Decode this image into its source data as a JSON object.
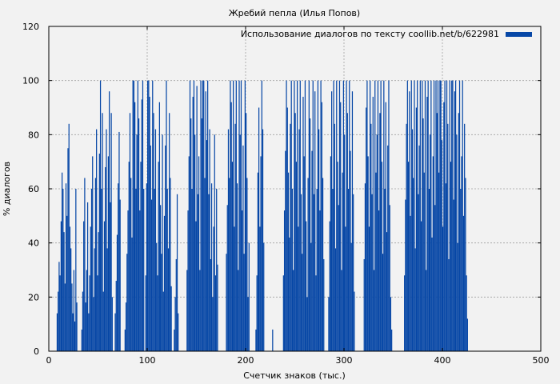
{
  "chart_data": {
    "type": "bar",
    "title": "Жребий пепла (Илья Попов)",
    "xlabel": "Счетчик знаков (тыс.)",
    "ylabel": "% диалогов",
    "xlim": [
      0,
      500
    ],
    "ylim": [
      0,
      120
    ],
    "x_ticks": [
      0,
      100,
      200,
      300,
      400,
      500
    ],
    "y_ticks": [
      0,
      20,
      40,
      60,
      80,
      100,
      120
    ],
    "grid": true,
    "legend_position": "top-right",
    "bar_width": 1,
    "colors": {
      "bars": "#0747a6",
      "background": "#f2f2f2",
      "plot_background": "#f2f2f2",
      "grid": "#a0a0a0",
      "axis": "#000000"
    },
    "series": [
      {
        "name": "Использование диалогов по тексту coollib.net/b/622981",
        "x_start": 0,
        "x_step": 1,
        "values": [
          0,
          0,
          0,
          0,
          0,
          0,
          0,
          0,
          14,
          22,
          33,
          28,
          48,
          66,
          60,
          44,
          25,
          62,
          50,
          75,
          84,
          46,
          38,
          25,
          14,
          30,
          11,
          60,
          18,
          0,
          0,
          0,
          0,
          8,
          22,
          48,
          64,
          18,
          30,
          55,
          14,
          28,
          46,
          60,
          72,
          20,
          38,
          64,
          82,
          28,
          44,
          73,
          100,
          60,
          88,
          22,
          48,
          68,
          82,
          38,
          72,
          96,
          55,
          88,
          20,
          0,
          0,
          14,
          26,
          43,
          62,
          81,
          56,
          0,
          0,
          0,
          0,
          8,
          18,
          36,
          52,
          70,
          88,
          64,
          42,
          100,
          100,
          92,
          60,
          80,
          100,
          86,
          52,
          70,
          93,
          100,
          60,
          0,
          28,
          62,
          100,
          100,
          94,
          76,
          56,
          100,
          88,
          60,
          82,
          40,
          28,
          70,
          92,
          54,
          36,
          80,
          22,
          50,
          76,
          100,
          60,
          38,
          88,
          64,
          24,
          0,
          0,
          8,
          20,
          34,
          58,
          14,
          0,
          0,
          0,
          0,
          0,
          0,
          0,
          0,
          30,
          52,
          72,
          100,
          86,
          60,
          94,
          100,
          80,
          48,
          98,
          58,
          72,
          30,
          100,
          86,
          100,
          100,
          64,
          96,
          78,
          100,
          58,
          82,
          34,
          62,
          20,
          46,
          80,
          28,
          60,
          32,
          0,
          0,
          0,
          0,
          0,
          0,
          0,
          0,
          36,
          54,
          82,
          64,
          100,
          92,
          70,
          100,
          46,
          84,
          100,
          62,
          30,
          100,
          80,
          100,
          52,
          76,
          36,
          100,
          88,
          64,
          20,
          40,
          0,
          0,
          0,
          0,
          0,
          0,
          8,
          28,
          66,
          90,
          46,
          72,
          100,
          82,
          40,
          0,
          0,
          0,
          0,
          0,
          0,
          0,
          0,
          8,
          0,
          0,
          0,
          0,
          0,
          0,
          0,
          0,
          0,
          0,
          28,
          52,
          74,
          100,
          90,
          66,
          42,
          84,
          100,
          60,
          30,
          100,
          88,
          70,
          100,
          46,
          82,
          100,
          58,
          36,
          94,
          72,
          100,
          48,
          20,
          64,
          100,
          86,
          40,
          74,
          100,
          58,
          96,
          28,
          60,
          100,
          82,
          52,
          100,
          92,
          64,
          34,
          0,
          0,
          0,
          0,
          20,
          48,
          72,
          96,
          60,
          100,
          84,
          38,
          100,
          70,
          54,
          100,
          92,
          30,
          66,
          100,
          80,
          46,
          100,
          88,
          60,
          100,
          74,
          40,
          96,
          58,
          22,
          0,
          0,
          0,
          0,
          0,
          0,
          0,
          0,
          0,
          34,
          62,
          90,
          100,
          72,
          46,
          100,
          84,
          58,
          94,
          30,
          100,
          66,
          80,
          100,
          52,
          88,
          100,
          70,
          36,
          100,
          60,
          92,
          44,
          76,
          100,
          54,
          20,
          8,
          0,
          0,
          0,
          0,
          0,
          0,
          0,
          0,
          0,
          0,
          0,
          0,
          28,
          56,
          84,
          100,
          70,
          96,
          50,
          100,
          82,
          64,
          100,
          38,
          90,
          100,
          58,
          76,
          100,
          48,
          100,
          86,
          66,
          100,
          30,
          94,
          100,
          60,
          80,
          100,
          42,
          72,
          100,
          54,
          100,
          88,
          100,
          66,
          100,
          100,
          78,
          46,
          92,
          100,
          62,
          100,
          84,
          34,
          100,
          70,
          100,
          100,
          56,
          96,
          100,
          80,
          40,
          88,
          100,
          60,
          72,
          100,
          50,
          84,
          64,
          28,
          12,
          0,
          0,
          0,
          0,
          0
        ]
      }
    ]
  }
}
